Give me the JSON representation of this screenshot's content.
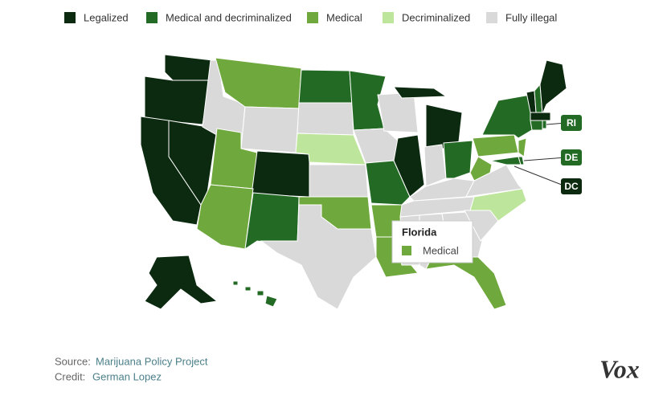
{
  "legend": [
    {
      "label": "Legalized",
      "color": "#0c2a10"
    },
    {
      "label": "Medical and decriminalized",
      "color": "#236b24"
    },
    {
      "label": "Medical",
      "color": "#6fa83c"
    },
    {
      "label": "Decriminalized",
      "color": "#bde59b"
    },
    {
      "label": "Fully illegal",
      "color": "#d9d9d9"
    }
  ],
  "callouts": [
    "RI",
    "DE",
    "DC"
  ],
  "tooltip": {
    "title": "Florida",
    "status": "Medical"
  },
  "source": {
    "label": "Source:",
    "text": "Marijuana Policy Project"
  },
  "credit": {
    "label": "Credit:",
    "text": "German Lopez"
  },
  "logo": "Vox"
}
